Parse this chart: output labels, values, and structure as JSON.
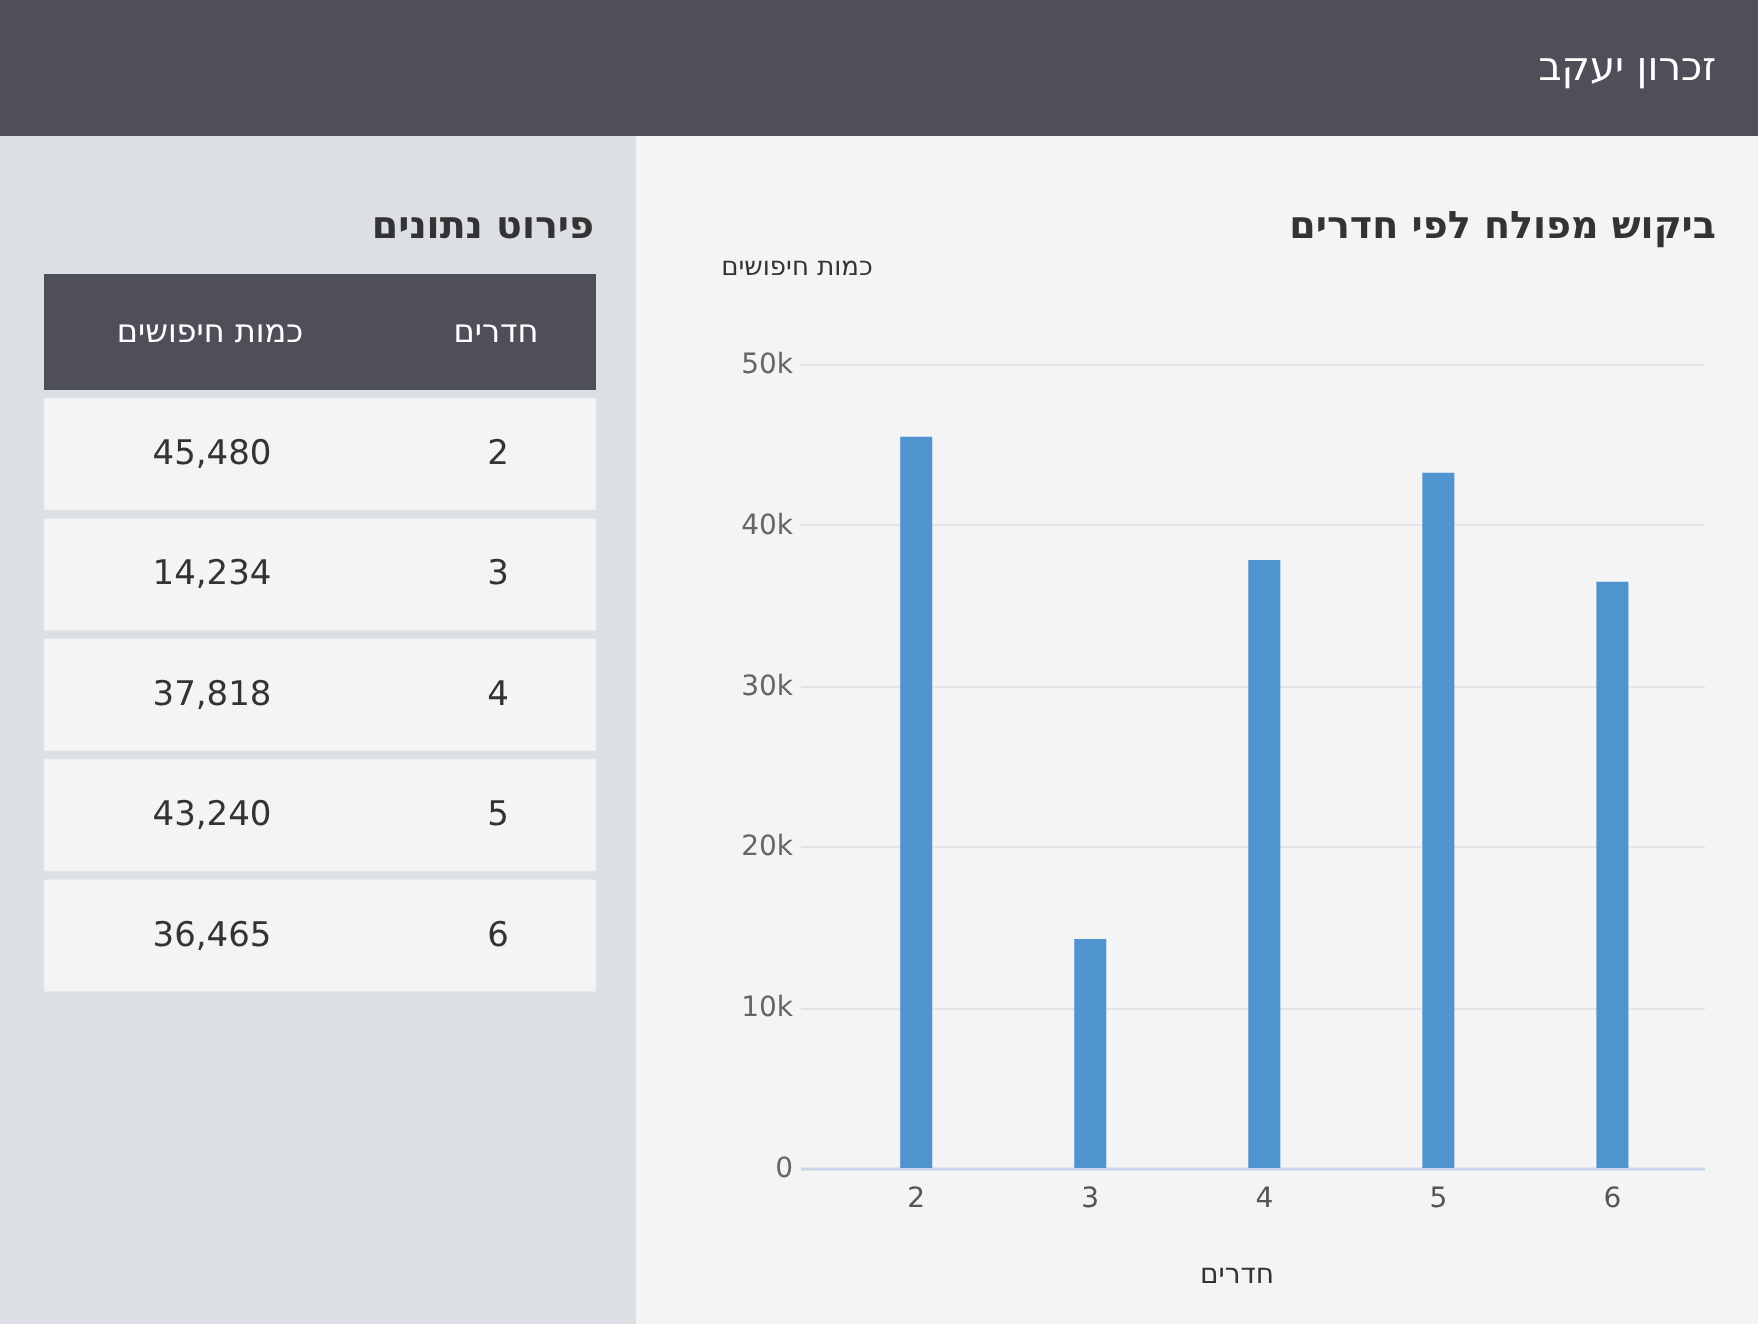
{
  "chart_data": {
    "type": "bar",
    "title": "ביקוש מפולח לפי חדרים",
    "xlabel": "חדרים",
    "ylabel": "כמות חיפושים",
    "annotations": [
      "זכרון יעקב",
      "פירוט נתונים",
      "חדרים",
      "כמות חיפושים",
      "2",
      "45,480",
      "3",
      "14,234",
      "4",
      "37,818",
      "5",
      "43,240",
      "6",
      "36,465"
    ],
    "categories": [
      "2",
      "3",
      "4",
      "5",
      "6"
    ],
    "values": [
      45480,
      14234,
      37818,
      43240,
      36465
    ],
    "color": "#4f94cf",
    "ylim": [
      0,
      50000
    ],
    "yticks": [
      0,
      {
        "value": 10000,
        "label": "10k"
      },
      {
        "value": 20000,
        "label": "20k"
      },
      {
        "value": 30000,
        "label": "30k"
      },
      {
        "value": 40000,
        "label": "40k"
      },
      {
        "value": 50000,
        "label": "50k"
      }
    ],
    "grid": "y"
  }
}
